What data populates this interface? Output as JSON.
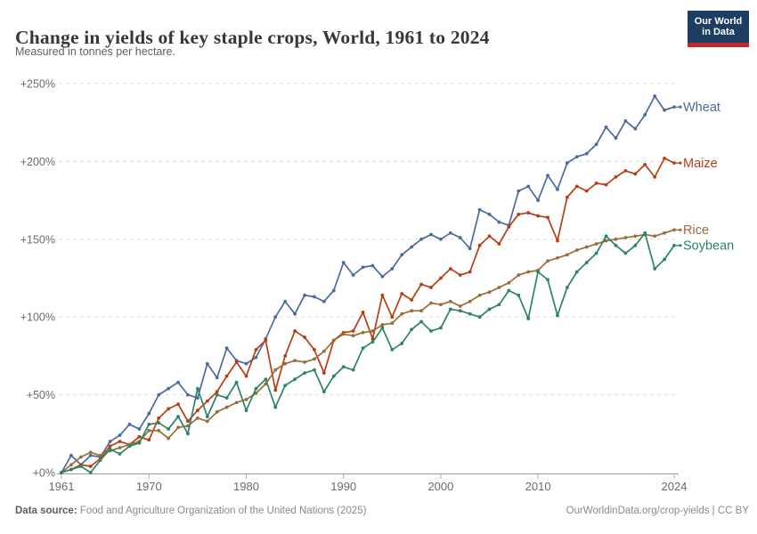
{
  "header": {
    "title": "Change in yields of key staple crops, World, 1961 to 2024",
    "subtitle": "Measured in tonnes per hectare.",
    "logo": {
      "line1": "Our World",
      "line2": "in Data",
      "bg_color": "#1d3d63",
      "bar_color": "#c0292e"
    }
  },
  "footer": {
    "source_label": "Data source:",
    "source_text": " Food and Agriculture Organization of the United Nations (2025)",
    "attribution": "OurWorldinData.org/crop-yields | CC BY"
  },
  "chart_data": {
    "type": "line",
    "title": "Change in yields of key staple crops, World, 1961 to 2024",
    "subtitle": "Measured in tonnes per hectare.",
    "unit": "% change relative to 1961",
    "grid": "horizontal dashed gridlines, no vertical grid",
    "legend_position": "labels at end of each line, right side",
    "x": [
      1961,
      1962,
      1963,
      1964,
      1965,
      1966,
      1967,
      1968,
      1969,
      1970,
      1971,
      1972,
      1973,
      1974,
      1975,
      1976,
      1977,
      1978,
      1979,
      1980,
      1981,
      1982,
      1983,
      1984,
      1985,
      1986,
      1987,
      1988,
      1989,
      1990,
      1991,
      1992,
      1993,
      1994,
      1995,
      1996,
      1997,
      1998,
      1999,
      2000,
      2001,
      2002,
      2003,
      2004,
      2005,
      2006,
      2007,
      2008,
      2009,
      2010,
      2011,
      2012,
      2013,
      2014,
      2015,
      2016,
      2017,
      2018,
      2019,
      2020,
      2021,
      2022,
      2023,
      2024
    ],
    "x_axis": {
      "range": [
        1961,
        2024
      ],
      "ticks": [
        1961,
        1970,
        1980,
        1990,
        2000,
        2010,
        2024
      ],
      "labels": [
        "1961",
        "1970",
        "1980",
        "1990",
        "2000",
        "2010",
        "2024"
      ]
    },
    "y_axis": {
      "range": [
        0,
        250
      ],
      "ticks": [
        0,
        50,
        100,
        150,
        200,
        250
      ],
      "labels": [
        "+0%",
        "+50%",
        "+100%",
        "+150%",
        "+200%",
        "+250%"
      ]
    },
    "series": [
      {
        "name": "Wheat",
        "color": "#4C6A9C",
        "values": [
          0,
          11,
          5,
          11,
          10,
          20,
          24,
          31,
          28,
          38,
          50,
          54,
          58,
          50,
          48,
          70,
          61,
          80,
          72,
          70,
          74,
          86,
          100,
          110,
          102,
          114,
          113,
          110,
          117,
          135,
          127,
          132,
          133,
          126,
          131,
          140,
          145,
          150,
          153,
          150,
          154,
          151,
          144,
          169,
          166,
          161,
          159,
          181,
          184,
          175,
          191,
          182,
          199,
          203,
          205,
          211,
          222,
          215,
          226,
          221,
          230,
          242,
          233,
          235
        ]
      },
      {
        "name": "Maize",
        "color": "#B93D14",
        "values": [
          0,
          2,
          5,
          4,
          9,
          17,
          20,
          18,
          23,
          21,
          35,
          41,
          44,
          33,
          40,
          46,
          52,
          62,
          71,
          62,
          79,
          85,
          53,
          75,
          91,
          87,
          79,
          64,
          85,
          90,
          91,
          103,
          86,
          114,
          100,
          115,
          111,
          121,
          119,
          125,
          131,
          127,
          129,
          146,
          152,
          147,
          158,
          166,
          167,
          165,
          164,
          149,
          177,
          184,
          181,
          186,
          185,
          190,
          194,
          192,
          198,
          190,
          202,
          199
        ]
      },
      {
        "name": "Rice",
        "color": "#996D39",
        "values": [
          0,
          5,
          10,
          13,
          11,
          14,
          16,
          18,
          20,
          27,
          27,
          22,
          29,
          30,
          35,
          33,
          39,
          42,
          45,
          47,
          51,
          57,
          66,
          70,
          72,
          71,
          73,
          78,
          85,
          89,
          88,
          90,
          91,
          95,
          96,
          102,
          104,
          104,
          109,
          108,
          110,
          107,
          110,
          114,
          116,
          119,
          122,
          127,
          129,
          130,
          136,
          138,
          140,
          143,
          145,
          147,
          149,
          150,
          151,
          152,
          153,
          152,
          154,
          156
        ]
      },
      {
        "name": "Soybean",
        "color": "#2C8465",
        "values": [
          0,
          2,
          4,
          0,
          8,
          15,
          12,
          17,
          19,
          31,
          32,
          28,
          36,
          25,
          54,
          36,
          50,
          48,
          58,
          40,
          54,
          60,
          42,
          56,
          60,
          64,
          66,
          52,
          62,
          68,
          66,
          80,
          84,
          93,
          79,
          83,
          92,
          97,
          91,
          93,
          105,
          104,
          102,
          100,
          105,
          108,
          117,
          114,
          99,
          129,
          124,
          101,
          119,
          129,
          135,
          141,
          152,
          146,
          141,
          146,
          154,
          131,
          137,
          146
        ]
      }
    ]
  }
}
